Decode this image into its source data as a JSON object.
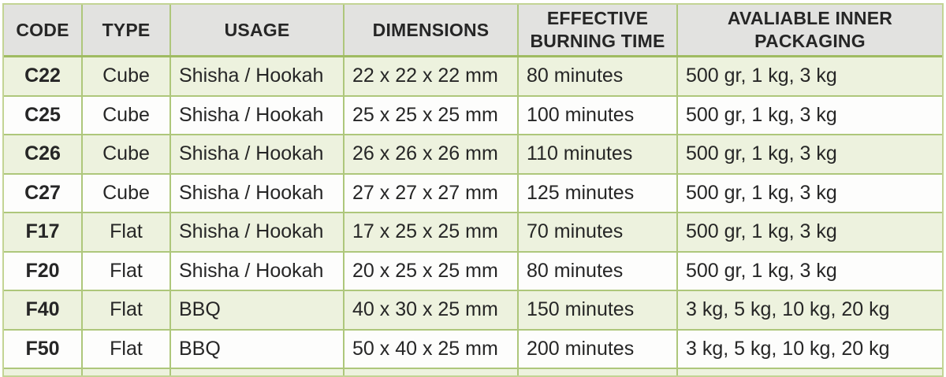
{
  "table": {
    "title": "charcoal-product-specifications",
    "columns": [
      {
        "key": "code",
        "label": "CODE",
        "lines": [
          "CODE"
        ],
        "align": "center"
      },
      {
        "key": "type",
        "label": "TYPE",
        "lines": [
          "TYPE"
        ],
        "align": "center"
      },
      {
        "key": "usage",
        "label": "USAGE",
        "lines": [
          "USAGE"
        ],
        "align": "left"
      },
      {
        "key": "dimensions",
        "label": "DIMENSIONS",
        "lines": [
          "DIMENSIONS"
        ],
        "align": "left"
      },
      {
        "key": "burning_time",
        "label": "EFFECTIVE BURNING TIME",
        "lines": [
          "EFFECTIVE",
          "BURNING TIME"
        ],
        "align": "left"
      },
      {
        "key": "packaging",
        "label": "AVALIABLE INNER PACKAGING",
        "lines": [
          "AVALIABLE INNER",
          "PACKAGING"
        ],
        "align": "left"
      }
    ],
    "rows": [
      {
        "code": "C22",
        "type": "Cube",
        "usage": "Shisha / Hookah",
        "dimensions": "22 x 22 x 22 mm",
        "burning_time": "80 minutes",
        "packaging": "500 gr, 1 kg, 3 kg"
      },
      {
        "code": "C25",
        "type": "Cube",
        "usage": "Shisha / Hookah",
        "dimensions": "25 x 25 x 25 mm",
        "burning_time": "100 minutes",
        "packaging": "500 gr, 1 kg, 3 kg"
      },
      {
        "code": "C26",
        "type": "Cube",
        "usage": "Shisha / Hookah",
        "dimensions": "26 x 26 x 26 mm",
        "burning_time": "110 minutes",
        "packaging": "500 gr, 1 kg, 3 kg"
      },
      {
        "code": "C27",
        "type": "Cube",
        "usage": "Shisha / Hookah",
        "dimensions": "27 x 27 x 27 mm",
        "burning_time": "125 minutes",
        "packaging": "500 gr, 1 kg, 3 kg"
      },
      {
        "code": "F17",
        "type": "Flat",
        "usage": "Shisha / Hookah",
        "dimensions": "17 x 25 x 25 mm",
        "burning_time": "70 minutes",
        "packaging": "500 gr, 1 kg, 3 kg"
      },
      {
        "code": "F20",
        "type": "Flat",
        "usage": "Shisha / Hookah",
        "dimensions": "20 x 25 x 25 mm",
        "burning_time": "80 minutes",
        "packaging": "500 gr, 1 kg, 3 kg"
      },
      {
        "code": "F40",
        "type": "Flat",
        "usage": "BBQ",
        "dimensions": "40 x 30 x 25 mm",
        "burning_time": "150 minutes",
        "packaging": "3 kg, 5 kg, 10 kg, 20 kg"
      },
      {
        "code": "F50",
        "type": "Flat",
        "usage": "BBQ",
        "dimensions": "50 x 40 x 25 mm",
        "burning_time": "200 minutes",
        "packaging": "3 kg, 5 kg, 10 kg, 20 kg"
      }
    ]
  },
  "colors": {
    "grid_border": "#aec77b",
    "grid_border_dark": "#9fbb62",
    "outer_border": "#c3d494",
    "header_background": "#e2e2e0",
    "row_stripe_green": "#edf2de",
    "row_stripe_white": "#fdfdfc",
    "text": "#262626"
  }
}
